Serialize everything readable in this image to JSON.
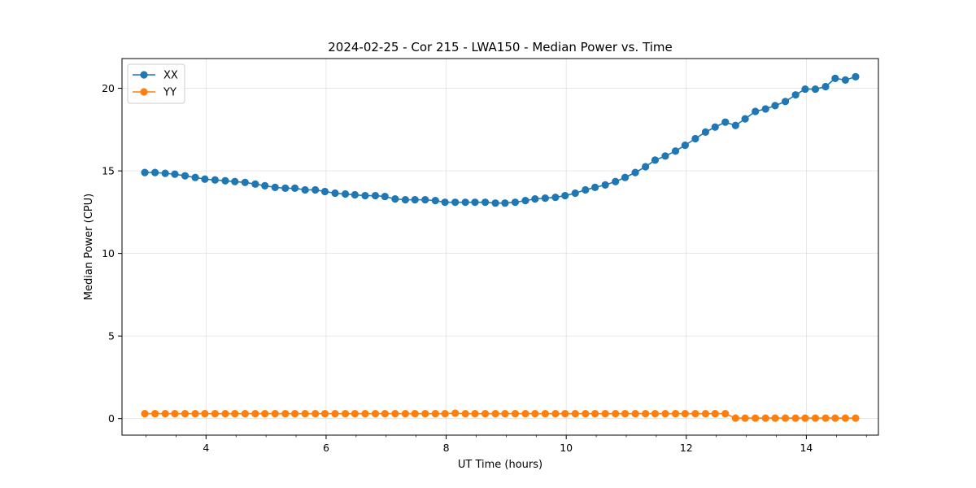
{
  "chart_data": {
    "type": "line",
    "title": "2024-02-25 - Cor 215 - LWA150 - Median Power vs. Time",
    "xlabel": "UT Time (hours)",
    "ylabel": "Median Power (CPU)",
    "xlim": [
      2.6,
      15.2
    ],
    "ylim": [
      -1.0,
      21.8
    ],
    "xticks": [
      4,
      6,
      8,
      10,
      12,
      14
    ],
    "yticks": [
      0,
      5,
      10,
      15,
      20
    ],
    "grid": true,
    "legend_position": "upper-left",
    "x": [
      2.98,
      3.15,
      3.32,
      3.48,
      3.65,
      3.82,
      3.98,
      4.15,
      4.32,
      4.48,
      4.65,
      4.82,
      4.98,
      5.15,
      5.32,
      5.48,
      5.65,
      5.82,
      5.98,
      6.15,
      6.32,
      6.48,
      6.65,
      6.82,
      6.98,
      7.15,
      7.32,
      7.48,
      7.65,
      7.82,
      7.98,
      8.15,
      8.32,
      8.48,
      8.65,
      8.82,
      8.98,
      9.15,
      9.32,
      9.48,
      9.65,
      9.82,
      9.98,
      10.15,
      10.32,
      10.48,
      10.65,
      10.82,
      10.98,
      11.15,
      11.32,
      11.48,
      11.65,
      11.82,
      11.98,
      12.15,
      12.32,
      12.48,
      12.65,
      12.82,
      12.98,
      13.15,
      13.32,
      13.48,
      13.65,
      13.82,
      13.98,
      14.15,
      14.32,
      14.48,
      14.65,
      14.82
    ],
    "series": [
      {
        "name": "XX",
        "color": "#1f77b4",
        "values": [
          14.9,
          14.9,
          14.85,
          14.8,
          14.7,
          14.6,
          14.5,
          14.45,
          14.4,
          14.35,
          14.3,
          14.2,
          14.1,
          14.0,
          13.95,
          13.95,
          13.85,
          13.85,
          13.75,
          13.65,
          13.6,
          13.55,
          13.5,
          13.5,
          13.45,
          13.3,
          13.25,
          13.25,
          13.25,
          13.2,
          13.1,
          13.1,
          13.1,
          13.1,
          13.1,
          13.05,
          13.05,
          13.1,
          13.2,
          13.3,
          13.35,
          13.4,
          13.5,
          13.65,
          13.85,
          14.0,
          14.15,
          14.35,
          14.6,
          14.9,
          15.25,
          15.65,
          15.9,
          16.2,
          16.55,
          16.95,
          17.35,
          17.65,
          17.95,
          17.75,
          18.15,
          18.6,
          18.75,
          18.95,
          19.2,
          19.6,
          19.95,
          19.95,
          20.1,
          20.6,
          20.5,
          20.7
        ]
      },
      {
        "name": "YY",
        "color": "#ff7f0e",
        "values": [
          0.3,
          0.3,
          0.3,
          0.3,
          0.3,
          0.3,
          0.3,
          0.3,
          0.3,
          0.3,
          0.3,
          0.3,
          0.3,
          0.3,
          0.3,
          0.3,
          0.3,
          0.3,
          0.3,
          0.3,
          0.3,
          0.3,
          0.3,
          0.3,
          0.3,
          0.3,
          0.3,
          0.3,
          0.3,
          0.3,
          0.3,
          0.33,
          0.3,
          0.3,
          0.3,
          0.3,
          0.3,
          0.3,
          0.3,
          0.3,
          0.3,
          0.3,
          0.3,
          0.3,
          0.3,
          0.3,
          0.3,
          0.3,
          0.3,
          0.3,
          0.3,
          0.3,
          0.3,
          0.3,
          0.3,
          0.3,
          0.3,
          0.3,
          0.3,
          0.03,
          0.03,
          0.03,
          0.03,
          0.03,
          0.03,
          0.03,
          0.03,
          0.03,
          0.03,
          0.03,
          0.03,
          0.03
        ]
      }
    ]
  }
}
